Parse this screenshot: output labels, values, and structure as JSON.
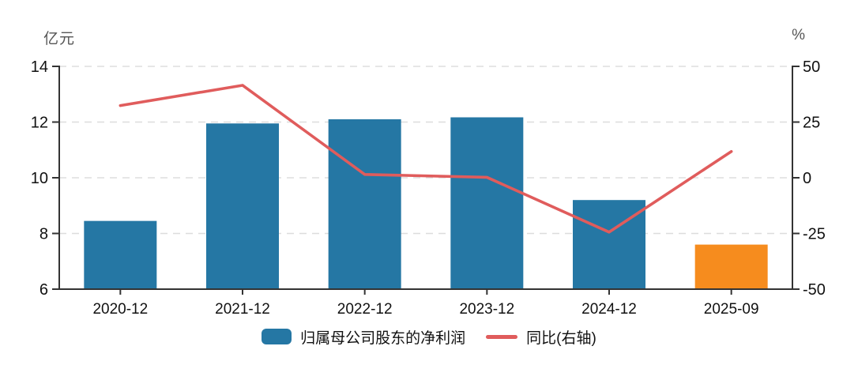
{
  "chart_data": {
    "type": "bar",
    "title": "",
    "categories": [
      "2020-12",
      "2021-12",
      "2022-12",
      "2023-12",
      "2024-12",
      "2025-09"
    ],
    "series": [
      {
        "name": "归属母公司股东的净利润",
        "type": "bar",
        "axis": "left",
        "values": [
          8.45,
          11.95,
          12.1,
          12.17,
          9.2,
          7.6
        ],
        "point_colors": [
          "#2577A4",
          "#2577A4",
          "#2577A4",
          "#2577A4",
          "#2577A4",
          "#F68C1E"
        ]
      },
      {
        "name": "同比(右轴)",
        "type": "line",
        "axis": "right",
        "values": [
          32.4,
          41.5,
          1.5,
          0.2,
          -24.4,
          11.8
        ],
        "color": "#E05C5C"
      }
    ],
    "left_axis": {
      "title": "亿元",
      "min": 6,
      "max": 14,
      "ticks": [
        6,
        8,
        10,
        12,
        14
      ]
    },
    "right_axis": {
      "title": "%",
      "min": -50,
      "max": 50,
      "ticks": [
        -50,
        -25,
        0,
        25,
        50
      ]
    },
    "legend": {
      "position": "bottom",
      "items": [
        {
          "label": "归属母公司股东的净利润",
          "swatch": "bar",
          "color": "#2577A4"
        },
        {
          "label": "同比(右轴)",
          "swatch": "line",
          "color": "#E05C5C"
        }
      ]
    },
    "grid": {
      "show": true,
      "style": "dashed",
      "color": "#DDDDDD"
    },
    "colors": {
      "bar": "#2577A4",
      "bar_highlight": "#F68C1E",
      "line": "#E05C5C",
      "axis": "#333333",
      "text": "#111111",
      "muted_text": "#555555",
      "background": "#FFFFFF"
    }
  }
}
